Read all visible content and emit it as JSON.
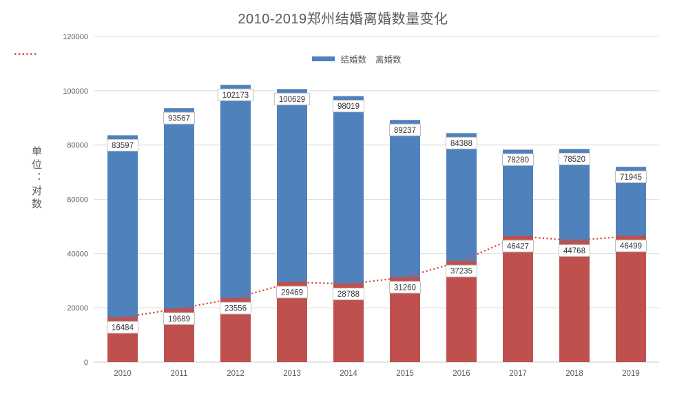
{
  "title": "2010-2019郑州结婚离婚数量变化",
  "y_axis_title": "单位：对数",
  "legend": {
    "position": "top-center",
    "items": [
      {
        "label": "结婚数",
        "swatch": "bar",
        "color": "#4F81BD"
      },
      {
        "label": "离婚数",
        "swatch": "dotted-line",
        "color": "#D6463D"
      }
    ]
  },
  "colors": {
    "marriage_bar": "#4F81BD",
    "divorce_bar": "#C0504D",
    "divorce_line": "#D6463D",
    "grid_line": "#D9D9D9",
    "axis_line": "#C9C9C9",
    "axis_text": "#595959",
    "title_text": "#595959",
    "label_text": "#363636",
    "label_box_fill": "#FFFFFF",
    "label_box_border": "#BFBFBF"
  },
  "chart_data": {
    "type": "bar",
    "subtype": "overlay-bars-with-dotted-trend-line",
    "title": "2010-2019郑州结婚离婚数量变化",
    "ylabel": "单位：对数",
    "xlabel": "",
    "categories": [
      "2010",
      "2011",
      "2012",
      "2013",
      "2014",
      "2015",
      "2016",
      "2017",
      "2018",
      "2019"
    ],
    "series": [
      {
        "key": "marriage",
        "name": "结婚数",
        "type": "bar",
        "color": "#4F81BD",
        "values": [
          83597,
          93567,
          102173,
          100629,
          98019,
          89237,
          84388,
          78280,
          78520,
          71945
        ]
      },
      {
        "key": "divorce",
        "name": "离婚数",
        "type": "bar-and-dotted-line",
        "color": "#C0504D",
        "line_color": "#D6463D",
        "values": [
          16484,
          19689,
          23556,
          29469,
          28788,
          31260,
          37235,
          46427,
          44768,
          46499
        ]
      }
    ],
    "ylim": [
      0,
      120000
    ],
    "ytick_step": 20000,
    "yticks": [
      0,
      20000,
      40000,
      60000,
      80000,
      100000,
      120000
    ],
    "grid": true,
    "legend_position": "top",
    "data_labels": "boxed, inside segment top",
    "bar_note": "bars share baseline; total bar height = 结婚数, red front bar = 离婚数"
  }
}
